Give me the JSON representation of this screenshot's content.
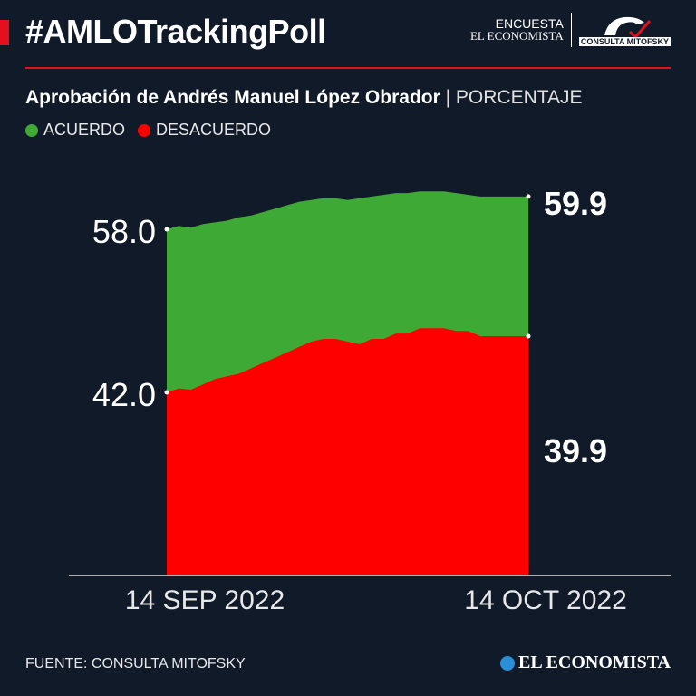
{
  "header": {
    "title": "#AMLOTrackingPoll",
    "logo_line1": "ENCUESTA",
    "logo_line2": "EL ECONOMISTA",
    "partner_logo": "CONSULTA MITOFSKY"
  },
  "colors": {
    "background": "#111a28",
    "accent": "#e5101e",
    "acuerdo": "#3ea935",
    "desacuerdo": "#ff0000"
  },
  "chart_data": {
    "type": "area",
    "title": "Aprobación de Andrés Manuel López Obrador",
    "unit": "PORCENTAJE",
    "x_labels": [
      "14 SEP 2022",
      "14 OCT 2022"
    ],
    "x": [
      "2022-09-14",
      "2022-09-15",
      "2022-09-16",
      "2022-09-17",
      "2022-09-18",
      "2022-09-19",
      "2022-09-20",
      "2022-09-21",
      "2022-09-22",
      "2022-09-23",
      "2022-09-24",
      "2022-09-25",
      "2022-09-26",
      "2022-09-27",
      "2022-09-28",
      "2022-09-29",
      "2022-09-30",
      "2022-10-01",
      "2022-10-02",
      "2022-10-03",
      "2022-10-04",
      "2022-10-05",
      "2022-10-06",
      "2022-10-07",
      "2022-10-08",
      "2022-10-09",
      "2022-10-10",
      "2022-10-11",
      "2022-10-12",
      "2022-10-13",
      "2022-10-14"
    ],
    "series": [
      {
        "name": "ACUERDO",
        "color": "#3ea935",
        "values": [
          58.0,
          58.2,
          58.1,
          58.3,
          58.4,
          58.5,
          58.7,
          58.8,
          59.0,
          59.2,
          59.4,
          59.6,
          59.7,
          59.8,
          59.8,
          59.7,
          59.8,
          59.9,
          60.0,
          60.1,
          60.1,
          60.2,
          60.2,
          60.2,
          60.1,
          60.0,
          59.9,
          59.9,
          59.9,
          59.9,
          59.9
        ],
        "start_label": "58.0",
        "end_label": "59.9"
      },
      {
        "name": "DESACUERDO",
        "color": "#ff0000",
        "values": [
          42.0,
          41.85,
          41.9,
          41.7,
          41.5,
          41.4,
          41.3,
          41.1,
          40.9,
          40.7,
          40.5,
          40.3,
          40.1,
          40.0,
          40.0,
          40.1,
          40.2,
          40.0,
          40.0,
          39.8,
          39.8,
          39.6,
          39.6,
          39.6,
          39.7,
          39.7,
          39.9,
          39.9,
          39.9,
          39.9,
          39.9
        ],
        "start_label": "42.0",
        "end_label": "39.9"
      }
    ],
    "grid": false,
    "legend_placement": "top-left"
  },
  "footer": {
    "source": "FUENTE: CONSULTA MITOFSKY",
    "brand": "EL ECONOMISTA"
  }
}
